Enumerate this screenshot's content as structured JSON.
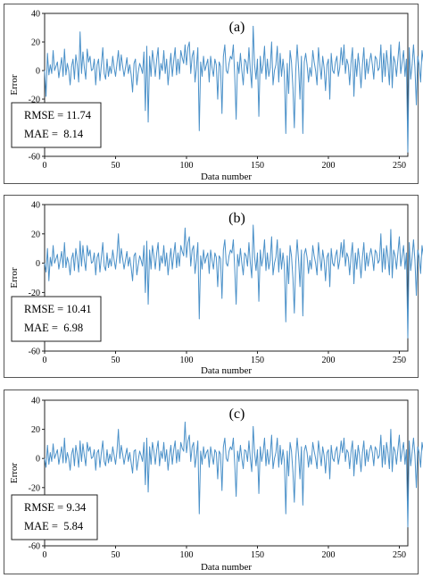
{
  "chart_data": [
    {
      "type": "line",
      "label": "(a)",
      "xlabel": "Data number",
      "ylabel": "Error",
      "xlim": [
        0,
        256
      ],
      "ylim": [
        -60,
        40
      ],
      "xticks": [
        0,
        50,
        100,
        150,
        200,
        250
      ],
      "yticks": [
        40,
        20,
        0,
        -20,
        -40,
        -60
      ],
      "color": "#4a90c8",
      "stats": [
        "RMSE = 11.74",
        "MAE =  8.14"
      ],
      "series": [
        {
          "values": [
            0,
            -18,
            12,
            -3,
            4,
            -2,
            14,
            0,
            3,
            6,
            -5,
            2,
            9,
            -4,
            15,
            -3,
            5,
            0,
            -10,
            3,
            8,
            -6,
            11,
            4,
            -8,
            27,
            -2,
            13,
            2,
            -6,
            15,
            6,
            10,
            0,
            1,
            8,
            -10,
            4,
            8,
            -7,
            4,
            16,
            -2,
            -6,
            8,
            -4,
            3,
            -2,
            10,
            2,
            -4,
            5,
            14,
            0,
            11,
            3,
            -4,
            2,
            9,
            -2,
            4,
            -3,
            -15,
            5,
            8,
            -10,
            -1,
            5,
            2,
            -2,
            13,
            -28,
            17,
            -36,
            10,
            -4,
            14,
            6,
            -4,
            8,
            16,
            -6,
            5,
            0,
            14,
            -2,
            8,
            -10,
            2,
            12,
            -4,
            7,
            16,
            -3,
            8,
            -2,
            14,
            9,
            5,
            18,
            4,
            16,
            20,
            -2,
            10,
            14,
            -8,
            2,
            16,
            -42,
            6,
            -4,
            10,
            0,
            4,
            8,
            -8,
            10,
            2,
            -4,
            8,
            4,
            -20,
            6,
            3,
            -30,
            10,
            18,
            0,
            -2,
            5,
            10,
            8,
            18,
            -4,
            -34,
            6,
            -2,
            12,
            0,
            -10,
            8,
            6,
            -2,
            16,
            0,
            -12,
            31,
            4,
            -6,
            8,
            -32,
            10,
            -2,
            4,
            17,
            -6,
            8,
            -4,
            2,
            20,
            -10,
            0,
            4,
            17,
            -8,
            12,
            -4,
            8,
            -2,
            -44,
            5,
            -16,
            14,
            6,
            -12,
            -40,
            0,
            18,
            2,
            -20,
            10,
            -44,
            6,
            12,
            4,
            -8,
            2,
            -4,
            14,
            6,
            0,
            -10,
            16,
            4,
            -6,
            10,
            2,
            -14,
            4,
            8,
            -20,
            12,
            0,
            -2,
            6,
            10,
            -4,
            2,
            16,
            4,
            18,
            -2,
            8,
            4,
            -10,
            6,
            16,
            -18,
            8,
            -4,
            12,
            2,
            -12,
            4,
            16,
            -6,
            8,
            -2,
            6,
            12,
            4,
            -6,
            10,
            8,
            0,
            2,
            18,
            -8,
            12,
            -4,
            14,
            4,
            -10,
            18,
            -12,
            10,
            6,
            -4,
            8,
            20,
            -2,
            6,
            14,
            -4,
            8,
            -57,
            16,
            -6,
            4,
            18,
            2,
            -24,
            10,
            4,
            -8,
            14,
            6,
            0,
            2,
            -2,
            8,
            2,
            4
          ]
        }
      ]
    },
    {
      "type": "line",
      "label": "(b)",
      "xlabel": "Data number",
      "ylabel": "Error",
      "xlim": [
        0,
        256
      ],
      "ylim": [
        -60,
        40
      ],
      "xticks": [
        0,
        50,
        100,
        150,
        200,
        250
      ],
      "yticks": [
        40,
        20,
        0,
        -20,
        -40,
        -60
      ],
      "color": "#4a90c8",
      "stats": [
        "RMSE = 10.41",
        "MAE =  6.98"
      ],
      "series": [
        {
          "values": [
            0,
            -6,
            10,
            -12,
            4,
            -2,
            12,
            0,
            3,
            6,
            -4,
            2,
            8,
            -3,
            14,
            -3,
            4,
            0,
            -8,
            3,
            7,
            -5,
            10,
            3,
            -6,
            15,
            -2,
            12,
            2,
            -5,
            12,
            5,
            9,
            0,
            1,
            7,
            -8,
            4,
            7,
            -6,
            4,
            14,
            -2,
            -5,
            7,
            -3,
            3,
            -2,
            9,
            2,
            -4,
            5,
            20,
            0,
            10,
            3,
            -4,
            2,
            8,
            -2,
            4,
            -3,
            -12,
            5,
            7,
            -8,
            -1,
            5,
            2,
            -2,
            12,
            -20,
            15,
            -28,
            9,
            -4,
            12,
            5,
            -4,
            7,
            14,
            -5,
            5,
            0,
            12,
            -2,
            7,
            -8,
            2,
            10,
            -4,
            6,
            14,
            -3,
            7,
            -2,
            12,
            8,
            5,
            24,
            4,
            14,
            18,
            -2,
            9,
            12,
            -7,
            2,
            14,
            -38,
            5,
            -4,
            9,
            0,
            4,
            7,
            -7,
            9,
            2,
            -4,
            7,
            4,
            -16,
            5,
            3,
            -24,
            9,
            16,
            0,
            -2,
            5,
            9,
            7,
            16,
            -4,
            -28,
            6,
            -2,
            10,
            0,
            -8,
            7,
            5,
            -2,
            14,
            0,
            -10,
            26,
            4,
            -5,
            7,
            -26,
            9,
            -2,
            4,
            16,
            -5,
            7,
            -4,
            2,
            18,
            -8,
            0,
            4,
            16,
            -6,
            10,
            -4,
            7,
            -2,
            -40,
            5,
            -14,
            12,
            5,
            -10,
            -34,
            0,
            16,
            2,
            -16,
            9,
            -36,
            6,
            10,
            4,
            -7,
            2,
            -4,
            12,
            5,
            0,
            -8,
            14,
            4,
            -5,
            9,
            2,
            -12,
            4,
            7,
            -16,
            10,
            0,
            -2,
            5,
            9,
            -4,
            2,
            14,
            4,
            16,
            -2,
            7,
            4,
            -8,
            5,
            14,
            -14,
            7,
            -4,
            10,
            2,
            -10,
            4,
            14,
            -5,
            7,
            -2,
            5,
            10,
            4,
            -5,
            9,
            7,
            0,
            2,
            20,
            -6,
            10,
            -4,
            12,
            4,
            -8,
            23,
            -10,
            9,
            5,
            -4,
            7,
            18,
            -2,
            5,
            12,
            -4,
            7,
            -51,
            14,
            -5,
            4,
            16,
            2,
            -22,
            9,
            4,
            -7,
            12,
            5,
            0,
            2,
            -2,
            7,
            17,
            4
          ]
        }
      ]
    },
    {
      "type": "line",
      "label": "(c)",
      "xlabel": "Data number",
      "ylabel": "Error",
      "xlim": [
        0,
        256
      ],
      "ylim": [
        -60,
        40
      ],
      "xticks": [
        0,
        50,
        100,
        150,
        200,
        250
      ],
      "yticks": [
        40,
        20,
        0,
        -20,
        -40,
        -60
      ],
      "color": "#4a90c8",
      "stats": [
        "RMSE = 9.34",
        "MAE =  5.84"
      ],
      "series": [
        {
          "values": [
            0,
            -6,
            9,
            -4,
            4,
            -2,
            10,
            0,
            3,
            6,
            -4,
            2,
            8,
            -3,
            14,
            -3,
            4,
            0,
            -8,
            3,
            7,
            -5,
            9,
            3,
            -6,
            12,
            -2,
            10,
            2,
            -5,
            11,
            5,
            8,
            0,
            1,
            6,
            -8,
            4,
            6,
            -6,
            4,
            12,
            -2,
            -5,
            6,
            -3,
            3,
            -2,
            8,
            2,
            -4,
            5,
            20,
            0,
            9,
            3,
            -4,
            2,
            7,
            -2,
            4,
            -3,
            -10,
            5,
            6,
            -8,
            -1,
            5,
            2,
            -2,
            11,
            -18,
            14,
            -23,
            8,
            -4,
            11,
            5,
            -4,
            6,
            12,
            -5,
            5,
            0,
            11,
            -2,
            6,
            -8,
            2,
            9,
            -4,
            6,
            12,
            -3,
            6,
            -2,
            11,
            7,
            5,
            25,
            4,
            12,
            16,
            -2,
            8,
            11,
            -6,
            2,
            12,
            -38,
            5,
            -4,
            8,
            0,
            4,
            6,
            -6,
            8,
            2,
            -4,
            6,
            4,
            -14,
            5,
            3,
            -22,
            8,
            14,
            0,
            -2,
            5,
            8,
            6,
            14,
            -4,
            -26,
            5,
            -2,
            9,
            0,
            -7,
            6,
            5,
            -2,
            12,
            0,
            -9,
            22,
            4,
            -5,
            6,
            -24,
            8,
            -2,
            4,
            14,
            -5,
            6,
            -4,
            2,
            16,
            -7,
            0,
            4,
            14,
            -6,
            9,
            -4,
            6,
            -2,
            -38,
            5,
            -12,
            11,
            5,
            -9,
            -30,
            0,
            14,
            2,
            -14,
            8,
            -32,
            5,
            9,
            4,
            -6,
            2,
            -4,
            11,
            5,
            0,
            -7,
            12,
            4,
            -5,
            8,
            2,
            -10,
            4,
            6,
            -14,
            9,
            0,
            -2,
            5,
            8,
            -4,
            2,
            12,
            4,
            14,
            -2,
            6,
            4,
            -7,
            5,
            12,
            -12,
            6,
            -4,
            9,
            2,
            -9,
            4,
            12,
            -5,
            6,
            -2,
            5,
            9,
            4,
            -5,
            8,
            6,
            0,
            2,
            16,
            -6,
            9,
            -4,
            11,
            4,
            -7,
            20,
            -9,
            8,
            5,
            -4,
            6,
            16,
            -2,
            5,
            11,
            -4,
            6,
            -47,
            12,
            -5,
            4,
            14,
            2,
            -20,
            8,
            4,
            -6,
            11,
            5,
            0,
            2,
            -2,
            6,
            15,
            -2
          ]
        }
      ]
    }
  ]
}
